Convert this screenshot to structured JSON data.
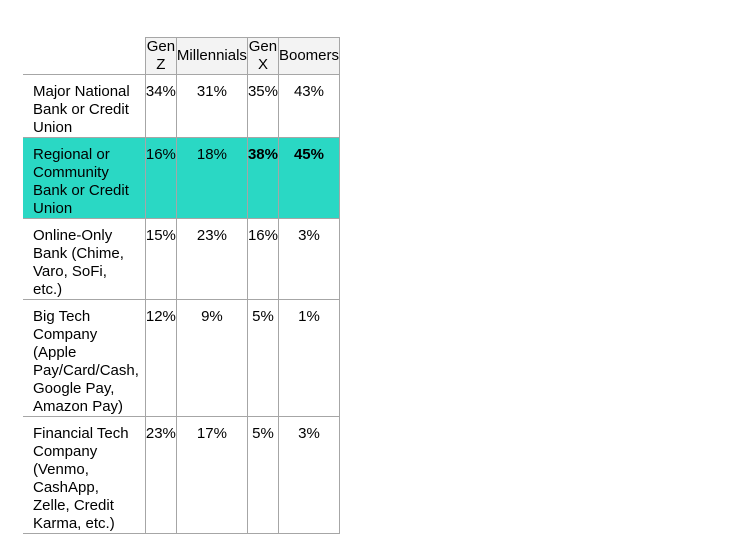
{
  "chart_data": {
    "type": "table",
    "columns": [
      "Gen Z",
      "Millennials",
      "Gen X",
      "Boomers"
    ],
    "rows": [
      {
        "label": "Major National Bank or Credit Union",
        "values": [
          "34%",
          "31%",
          "35%",
          "43%"
        ],
        "highlight": false,
        "bold": []
      },
      {
        "label": "Regional or Community Bank or Credit Union",
        "values": [
          "16%",
          "18%",
          "38%",
          "45%"
        ],
        "highlight": true,
        "bold": [
          2,
          3
        ]
      },
      {
        "label": "Online-Only Bank (Chime, Varo, SoFi, etc.)",
        "values": [
          "15%",
          "23%",
          "16%",
          "3%"
        ],
        "highlight": false,
        "bold": []
      },
      {
        "label": "Big Tech Company (Apple Pay/Card/Cash, Google Pay, Amazon Pay)",
        "values": [
          "12%",
          "9%",
          "5%",
          "1%"
        ],
        "highlight": false,
        "bold": []
      },
      {
        "label": "Financial Tech Company (Venmo, CashApp, Zelle, Credit Karma, etc.)",
        "values": [
          "23%",
          "17%",
          "5%",
          "3%"
        ],
        "highlight": false,
        "bold": []
      }
    ],
    "highlight_color": "#2ad8c4",
    "header_color": "#f3f3f3",
    "border_color": "#a6a6a6"
  }
}
